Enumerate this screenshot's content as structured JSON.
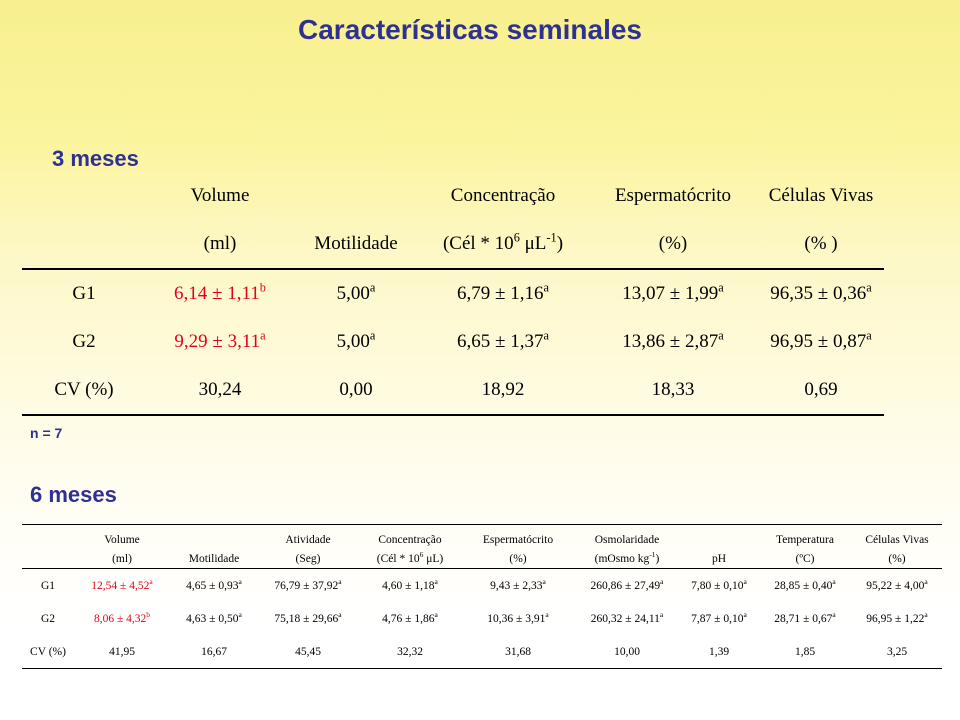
{
  "title": "Características seminales",
  "section1": {
    "label": "3 meses",
    "note": "n = 7",
    "header_row1": [
      "",
      "Volume",
      "",
      "Concentração",
      "Espermatócrito",
      "Células Vivas"
    ],
    "header_row2": [
      "",
      "(ml)",
      "Motilidade",
      "(Cél * 10",
      "(%)",
      "(% )"
    ],
    "header_row2_extra": {
      "exp": "6",
      "unit": " μL",
      "exp2": "-1",
      "close": ")"
    },
    "rows": [
      {
        "label": "G1",
        "volume": "6,14 ± 1,11",
        "volume_sup": "b",
        "motilidade": "5,00",
        "motilidade_sup": "a",
        "concentracao": "6,79 ± 1,16",
        "concentracao_sup": "a",
        "espermatocrito": "13,07 ± 1,99",
        "espermatocrito_sup": "a",
        "celulas": "96,35 ± 0,36",
        "celulas_sup": "a"
      },
      {
        "label": "G2",
        "volume": "9,29 ± 3,11",
        "volume_sup": "a",
        "motilidade": "5,00",
        "motilidade_sup": "a",
        "concentracao": "6,65 ± 1,37",
        "concentracao_sup": "a",
        "espermatocrito": "13,86 ± 2,87",
        "espermatocrito_sup": "a",
        "celulas": "96,95 ± 0,87",
        "celulas_sup": "a"
      },
      {
        "label": "CV (%)",
        "volume": "30,24",
        "volume_sup": "",
        "motilidade": "0,00",
        "motilidade_sup": "",
        "concentracao": "18,92",
        "concentracao_sup": "",
        "espermatocrito": "18,33",
        "espermatocrito_sup": "",
        "celulas": "0,69",
        "celulas_sup": ""
      }
    ]
  },
  "section2": {
    "label": "6 meses",
    "header_row1": [
      "",
      "Volume",
      "",
      "Atividade",
      "Concentração",
      "Espermatócrito",
      "Osmolaridade",
      "",
      "Temperatura",
      "Células Vivas"
    ],
    "header_row2": [
      "",
      "(ml)",
      "Motilidade",
      "(Seg)",
      "(Cél * 10",
      "(%)",
      "(mOsmo kg",
      "pH",
      "(ºC)",
      "(%)"
    ],
    "header_row2_extra": {
      "conc_exp": "6",
      "conc_unit": " μL)",
      "osmo_exp": "-1",
      "osmo_close": ")"
    },
    "rows": [
      {
        "label": "G1",
        "cells": [
          {
            "v": "12,54 ± 4,52",
            "s": "a"
          },
          {
            "v": "4,65 ± 0,93",
            "s": "a"
          },
          {
            "v": "76,79 ± 37,92",
            "s": "a"
          },
          {
            "v": "4,60 ± 1,18",
            "s": "a"
          },
          {
            "v": "9,43 ± 2,33",
            "s": "a"
          },
          {
            "v": "260,86 ± 27,49",
            "s": "a"
          },
          {
            "v": "7,80 ± 0,10",
            "s": "a"
          },
          {
            "v": "28,85 ± 0,40",
            "s": "a"
          },
          {
            "v": "95,22 ± 4,00",
            "s": "a"
          }
        ]
      },
      {
        "label": "G2",
        "cells": [
          {
            "v": "8,06 ± 4,32",
            "s": "b"
          },
          {
            "v": "4,63 ± 0,50",
            "s": "a"
          },
          {
            "v": "75,18 ± 29,66",
            "s": "a"
          },
          {
            "v": "4,76 ± 1,86",
            "s": "a"
          },
          {
            "v": "10,36 ± 3,91",
            "s": "a"
          },
          {
            "v": "260,32 ± 24,11",
            "s": "a"
          },
          {
            "v": "7,87 ± 0,10",
            "s": "a"
          },
          {
            "v": "28,71 ± 0,67",
            "s": "a"
          },
          {
            "v": "96,95 ± 1,22",
            "s": "a"
          }
        ]
      },
      {
        "label": "CV (%)",
        "cells": [
          {
            "v": "41,95",
            "s": ""
          },
          {
            "v": "16,67",
            "s": ""
          },
          {
            "v": "45,45",
            "s": ""
          },
          {
            "v": "32,32",
            "s": ""
          },
          {
            "v": "31,68",
            "s": ""
          },
          {
            "v": "10,00",
            "s": ""
          },
          {
            "v": "1,39",
            "s": ""
          },
          {
            "v": "1,85",
            "s": ""
          },
          {
            "v": "3,25",
            "s": ""
          }
        ]
      }
    ]
  },
  "colors": {
    "title": "#2e3192",
    "highlight": "#e3001b"
  }
}
